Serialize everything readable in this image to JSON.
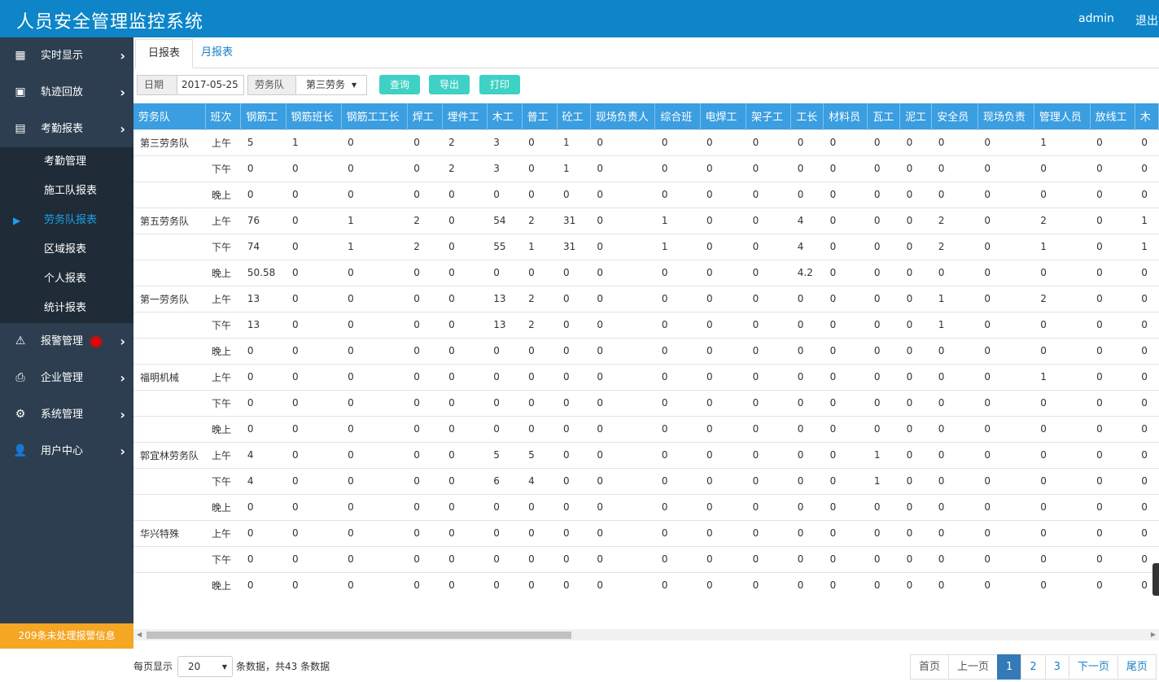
{
  "header": {
    "title": "人员安全管理监控系统",
    "user": "admin",
    "logout": "退出"
  },
  "sidebar": {
    "items": [
      {
        "label": "实时显示",
        "icon": "grid-icon"
      },
      {
        "label": "轨迹回放",
        "icon": "play-icon"
      },
      {
        "label": "考勤报表",
        "icon": "book-icon"
      }
    ],
    "sub_items": [
      {
        "label": "考勤管理"
      },
      {
        "label": "施工队报表"
      },
      {
        "label": "劳务队报表"
      },
      {
        "label": "区域报表"
      },
      {
        "label": "个人报表"
      },
      {
        "label": "统计报表"
      }
    ],
    "items_after": [
      {
        "label": "报警管理",
        "icon": "warning-icon"
      },
      {
        "label": "企业管理",
        "icon": "printer-icon"
      },
      {
        "label": "系统管理",
        "icon": "gear-icon"
      },
      {
        "label": "用户中心",
        "icon": "user-icon"
      }
    ],
    "alarm_banner": "209条未处理报警信息"
  },
  "tabs": [
    {
      "label": "日报表"
    },
    {
      "label": "月报表"
    }
  ],
  "toolbar": {
    "date_label": "日期",
    "date_value": "2017-05-25",
    "team_label": "劳务队",
    "team_value": "第三劳务",
    "query": "查询",
    "export": "导出",
    "print": "打印"
  },
  "table": {
    "columns": [
      "劳务队",
      "班次",
      "钢筋工",
      "钢筋班长",
      "钢筋工工长",
      "焊工",
      "埋件工",
      "木工",
      "普工",
      "砼工",
      "现场负责人",
      "综合班",
      "电焊工",
      "架子工",
      "工长",
      "材料员",
      "瓦工",
      "泥工",
      "安全员",
      "现场负责",
      "管理人员",
      "放线工",
      "木"
    ],
    "rows": [
      [
        "第三劳务队",
        "上午",
        "5",
        "1",
        "0",
        "0",
        "2",
        "3",
        "0",
        "1",
        "0",
        "0",
        "0",
        "0",
        "0",
        "0",
        "0",
        "0",
        "0",
        "0",
        "1",
        "0",
        "0"
      ],
      [
        "",
        "下午",
        "0",
        "0",
        "0",
        "0",
        "2",
        "3",
        "0",
        "1",
        "0",
        "0",
        "0",
        "0",
        "0",
        "0",
        "0",
        "0",
        "0",
        "0",
        "0",
        "0",
        "0"
      ],
      [
        "",
        "晚上",
        "0",
        "0",
        "0",
        "0",
        "0",
        "0",
        "0",
        "0",
        "0",
        "0",
        "0",
        "0",
        "0",
        "0",
        "0",
        "0",
        "0",
        "0",
        "0",
        "0",
        "0"
      ],
      [
        "第五劳务队",
        "上午",
        "76",
        "0",
        "1",
        "2",
        "0",
        "54",
        "2",
        "31",
        "0",
        "1",
        "0",
        "0",
        "4",
        "0",
        "0",
        "0",
        "2",
        "0",
        "2",
        "0",
        "1"
      ],
      [
        "",
        "下午",
        "74",
        "0",
        "1",
        "2",
        "0",
        "55",
        "1",
        "31",
        "0",
        "1",
        "0",
        "0",
        "4",
        "0",
        "0",
        "0",
        "2",
        "0",
        "1",
        "0",
        "1"
      ],
      [
        "",
        "晚上",
        "50.58",
        "0",
        "0",
        "0",
        "0",
        "0",
        "0",
        "0",
        "0",
        "0",
        "0",
        "0",
        "4.2",
        "0",
        "0",
        "0",
        "0",
        "0",
        "0",
        "0",
        "0"
      ],
      [
        "第一劳务队",
        "上午",
        "13",
        "0",
        "0",
        "0",
        "0",
        "13",
        "2",
        "0",
        "0",
        "0",
        "0",
        "0",
        "0",
        "0",
        "0",
        "0",
        "1",
        "0",
        "2",
        "0",
        "0"
      ],
      [
        "",
        "下午",
        "13",
        "0",
        "0",
        "0",
        "0",
        "13",
        "2",
        "0",
        "0",
        "0",
        "0",
        "0",
        "0",
        "0",
        "0",
        "0",
        "1",
        "0",
        "0",
        "0",
        "0"
      ],
      [
        "",
        "晚上",
        "0",
        "0",
        "0",
        "0",
        "0",
        "0",
        "0",
        "0",
        "0",
        "0",
        "0",
        "0",
        "0",
        "0",
        "0",
        "0",
        "0",
        "0",
        "0",
        "0",
        "0"
      ],
      [
        "福明机械",
        "上午",
        "0",
        "0",
        "0",
        "0",
        "0",
        "0",
        "0",
        "0",
        "0",
        "0",
        "0",
        "0",
        "0",
        "0",
        "0",
        "0",
        "0",
        "0",
        "1",
        "0",
        "0"
      ],
      [
        "",
        "下午",
        "0",
        "0",
        "0",
        "0",
        "0",
        "0",
        "0",
        "0",
        "0",
        "0",
        "0",
        "0",
        "0",
        "0",
        "0",
        "0",
        "0",
        "0",
        "0",
        "0",
        "0"
      ],
      [
        "",
        "晚上",
        "0",
        "0",
        "0",
        "0",
        "0",
        "0",
        "0",
        "0",
        "0",
        "0",
        "0",
        "0",
        "0",
        "0",
        "0",
        "0",
        "0",
        "0",
        "0",
        "0",
        "0"
      ],
      [
        "郭宜林劳务队",
        "上午",
        "4",
        "0",
        "0",
        "0",
        "0",
        "5",
        "5",
        "0",
        "0",
        "0",
        "0",
        "0",
        "0",
        "0",
        "1",
        "0",
        "0",
        "0",
        "0",
        "0",
        "0"
      ],
      [
        "",
        "下午",
        "4",
        "0",
        "0",
        "0",
        "0",
        "6",
        "4",
        "0",
        "0",
        "0",
        "0",
        "0",
        "0",
        "0",
        "1",
        "0",
        "0",
        "0",
        "0",
        "0",
        "0"
      ],
      [
        "",
        "晚上",
        "0",
        "0",
        "0",
        "0",
        "0",
        "0",
        "0",
        "0",
        "0",
        "0",
        "0",
        "0",
        "0",
        "0",
        "0",
        "0",
        "0",
        "0",
        "0",
        "0",
        "0"
      ],
      [
        "华兴特殊",
        "上午",
        "0",
        "0",
        "0",
        "0",
        "0",
        "0",
        "0",
        "0",
        "0",
        "0",
        "0",
        "0",
        "0",
        "0",
        "0",
        "0",
        "0",
        "0",
        "0",
        "0",
        "0"
      ],
      [
        "",
        "下午",
        "0",
        "0",
        "0",
        "0",
        "0",
        "0",
        "0",
        "0",
        "0",
        "0",
        "0",
        "0",
        "0",
        "0",
        "0",
        "0",
        "0",
        "0",
        "0",
        "0",
        "0"
      ],
      [
        "",
        "晚上",
        "0",
        "0",
        "0",
        "0",
        "0",
        "0",
        "0",
        "0",
        "0",
        "0",
        "0",
        "0",
        "0",
        "0",
        "0",
        "0",
        "0",
        "0",
        "0",
        "0",
        "0"
      ]
    ]
  },
  "footer": {
    "per_page_label": "每页显示",
    "per_page_value": "20",
    "total_text": "条数据，共43 条数据",
    "pager": {
      "first": "首页",
      "prev": "上一页",
      "pages": [
        "1",
        "2",
        "3"
      ],
      "current": "1",
      "next": "下一页",
      "last": "尾页"
    }
  },
  "colors": {
    "header_bg": "#0d85c8",
    "sidebar_bg": "#2c3e50",
    "table_header_bg": "#3a9ee0",
    "button_bg": "#3fd1c4",
    "alarm_banner_bg": "#f5a623"
  }
}
